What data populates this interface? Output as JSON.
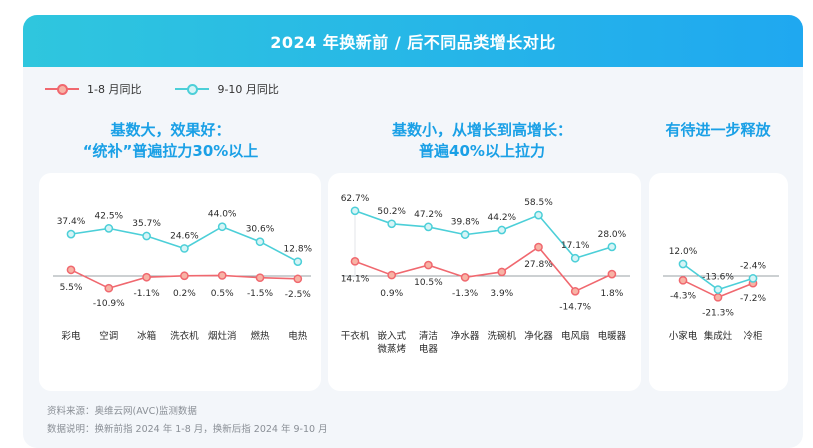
{
  "title": "2024 年换新前 / 后不同品类增长对比",
  "legend": {
    "series1": "1-8 月同比",
    "series2": "9-10 月同比"
  },
  "colors": {
    "series1": "#f0686f",
    "series2": "#4ccfd8",
    "heading": "#1aa0e6",
    "banner_start": "#2fc6de",
    "banner_end": "#1fa8f0"
  },
  "headings": {
    "group1_line1": "基数大，效果好：",
    "group1_line2": "“统补”普遍拉力30%以上",
    "group2_line1": "基数小，从增长到高增长：",
    "group2_line2": "普遍40%以上拉力",
    "group3_line1": "有待进一步释放"
  },
  "chart_data": [
    {
      "type": "line",
      "categories": [
        "彩电",
        "空调",
        "冰箱",
        "洗衣机",
        "烟灶消",
        "燃热",
        "电热"
      ],
      "series": [
        {
          "name": "1-8 月同比",
          "values": [
            5.5,
            -10.9,
            -1.1,
            0.2,
            0.5,
            -1.5,
            -2.5
          ],
          "labels": [
            "5.5%",
            "-10.9%",
            "-1.1%",
            "0.2%",
            "0.5%",
            "-1.5%",
            "-2.5%"
          ]
        },
        {
          "name": "9-10 月同比",
          "values": [
            37.4,
            42.5,
            35.7,
            24.6,
            44.0,
            30.6,
            12.8
          ],
          "labels": [
            "37.4%",
            "42.5%",
            "35.7%",
            "24.6%",
            "44.0%",
            "30.6%",
            "12.8%"
          ]
        }
      ]
    },
    {
      "type": "line",
      "categories": [
        "干衣机",
        "嵌入式\n微蒸烤",
        "清洁\n电器",
        "净水器",
        "洗碗机",
        "净化器",
        "电风扇",
        "电暖器"
      ],
      "series": [
        {
          "name": "1-8 月同比",
          "values": [
            14.1,
            0.9,
            10.5,
            -1.3,
            3.9,
            27.8,
            -14.7,
            1.8
          ],
          "labels": [
            "14.1%",
            "0.9%",
            "10.5%",
            "-1.3%",
            "3.9%",
            "27.8%",
            "-14.7%",
            "1.8%"
          ]
        },
        {
          "name": "9-10 月同比",
          "values": [
            62.7,
            50.2,
            47.2,
            39.8,
            44.2,
            58.5,
            17.1,
            28.0
          ],
          "labels": [
            "62.7%",
            "50.2%",
            "47.2%",
            "39.8%",
            "44.2%",
            "58.5%",
            "17.1%",
            "28.0%"
          ]
        }
      ]
    },
    {
      "type": "line",
      "categories": [
        "小家电",
        "集成灶",
        "冷柜"
      ],
      "series": [
        {
          "name": "1-8 月同比",
          "values": [
            -4.3,
            -21.3,
            -7.2
          ],
          "labels": [
            "-4.3%",
            "-21.3%",
            "-7.2%"
          ]
        },
        {
          "name": "9-10 月同比",
          "values": [
            12.0,
            -13.6,
            -2.4
          ],
          "labels": [
            "12.0%",
            "-13.6%",
            "-2.4%"
          ]
        }
      ]
    }
  ],
  "footnotes": {
    "source": "资料来源：奥维云网(AVC)监测数据",
    "note": "数据说明：换新前指 2024 年 1-8 月，换新后指 2024 年 9-10 月"
  }
}
